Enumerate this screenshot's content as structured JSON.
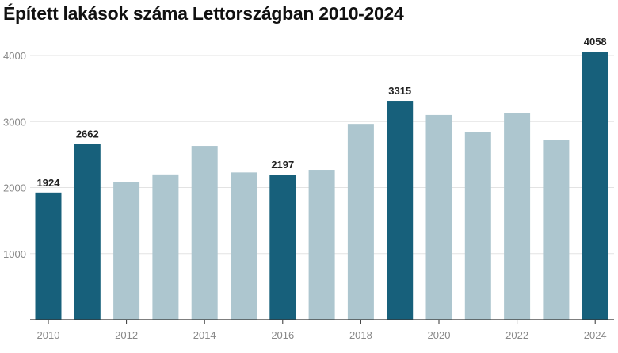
{
  "chart_data": {
    "type": "bar",
    "title": "Épített lakások száma Lettországban 2010-2024",
    "xlabel": "",
    "ylabel": "",
    "ylim": [
      0,
      4000
    ],
    "yticks": [
      1000,
      2000,
      3000,
      4000
    ],
    "xticks": [
      "2010",
      "2012",
      "2014",
      "2016",
      "2018",
      "2020",
      "2022",
      "2024"
    ],
    "grid": true,
    "categories": [
      "2010",
      "2011",
      "2012",
      "2013",
      "2014",
      "2015",
      "2016",
      "2017",
      "2018",
      "2019",
      "2020",
      "2021",
      "2022",
      "2023",
      "2024"
    ],
    "values": [
      1924,
      2662,
      2080,
      2200,
      2630,
      2230,
      2197,
      2270,
      2965,
      3315,
      3100,
      2845,
      3130,
      2725,
      4058
    ],
    "highlighted": [
      true,
      true,
      false,
      false,
      false,
      false,
      true,
      false,
      false,
      true,
      false,
      false,
      false,
      false,
      true
    ],
    "data_labels": {
      "2010": "1924",
      "2011": "2662",
      "2016": "2197",
      "2019": "3315",
      "2024": "4058"
    },
    "colors": {
      "highlight": "#17607b",
      "normal": "#adc6cf",
      "grid": "#e3e3e3",
      "axis": "#333333"
    }
  }
}
